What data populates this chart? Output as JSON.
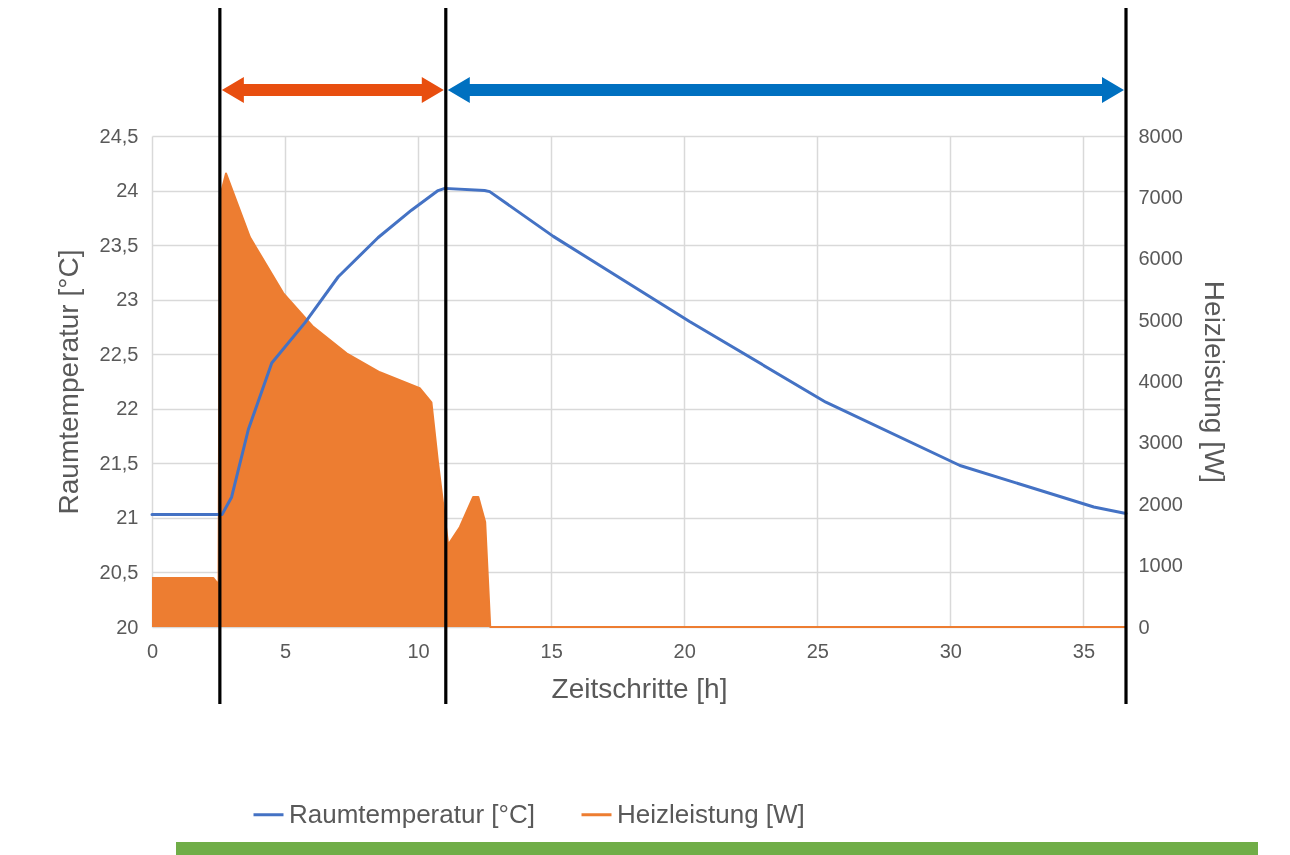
{
  "chart_data": {
    "type": "line",
    "xlabel": "Zeitschritte [h]",
    "ylabel": "Raumtemperatur [°C]",
    "y2label": "Heizleistung [W]",
    "xlim": [
      0,
      36.6
    ],
    "xticks": [
      0,
      5,
      10,
      15,
      20,
      25,
      30,
      35
    ],
    "ylim": [
      20,
      24.5
    ],
    "yticks": [
      20,
      {
        "value": 20.5,
        "label": "20,5"
      },
      21,
      {
        "value": 21.5,
        "label": "21,5"
      },
      22,
      {
        "value": 22.5,
        "label": "22,5"
      },
      23,
      {
        "value": 23.5,
        "label": "23,5"
      },
      24,
      {
        "value": 24.5,
        "label": "24,5"
      }
    ],
    "y2lim": [
      0,
      8000
    ],
    "y2ticks": [
      0,
      1000,
      2000,
      3000,
      4000,
      5000,
      6000,
      7000,
      8000
    ],
    "grid": true,
    "legend": "bottom",
    "series": [
      {
        "name": "Raumtemperatur [°C]",
        "color": "#4472c4",
        "x": [
          0,
          2.63,
          2.99,
          3.62,
          4.5,
          5.75,
          7.0,
          8.5,
          9.75,
          10.75,
          11.0,
          12.5,
          12.69,
          15.08,
          20.2,
          25.32,
          30.36,
          35.39,
          36.6
        ],
        "values": [
          21.03,
          21.03,
          21.19,
          21.81,
          22.42,
          22.79,
          23.21,
          23.57,
          23.82,
          24.0,
          24.02,
          24.0,
          23.99,
          23.58,
          22.8,
          22.06,
          21.48,
          21.1,
          21.04
        ]
      },
      {
        "name": "Heizleistung [W]",
        "color": "#ed7d31",
        "type": "area",
        "axis": "y2",
        "x": [
          0,
          2.3,
          2.5,
          2.55,
          2.78,
          3.68,
          4.93,
          6.06,
          7.31,
          8.56,
          10.06,
          10.5,
          10.75,
          11.13,
          11.57,
          12.07,
          12.26,
          12.52,
          12.71,
          36.6
        ],
        "values": [
          800,
          800,
          690,
          7000,
          7390,
          6350,
          5440,
          4890,
          4460,
          4150,
          3890,
          3660,
          2670,
          1340,
          1630,
          2120,
          2120,
          1710,
          0,
          0
        ]
      }
    ],
    "ref_lines": [
      {
        "axis": "x",
        "value": 2.55,
        "color": "#000000"
      },
      {
        "axis": "x",
        "value": 11.04,
        "color": "#000000"
      },
      {
        "axis": "x",
        "value": 36.6,
        "color": "#000000"
      }
    ]
  }
}
